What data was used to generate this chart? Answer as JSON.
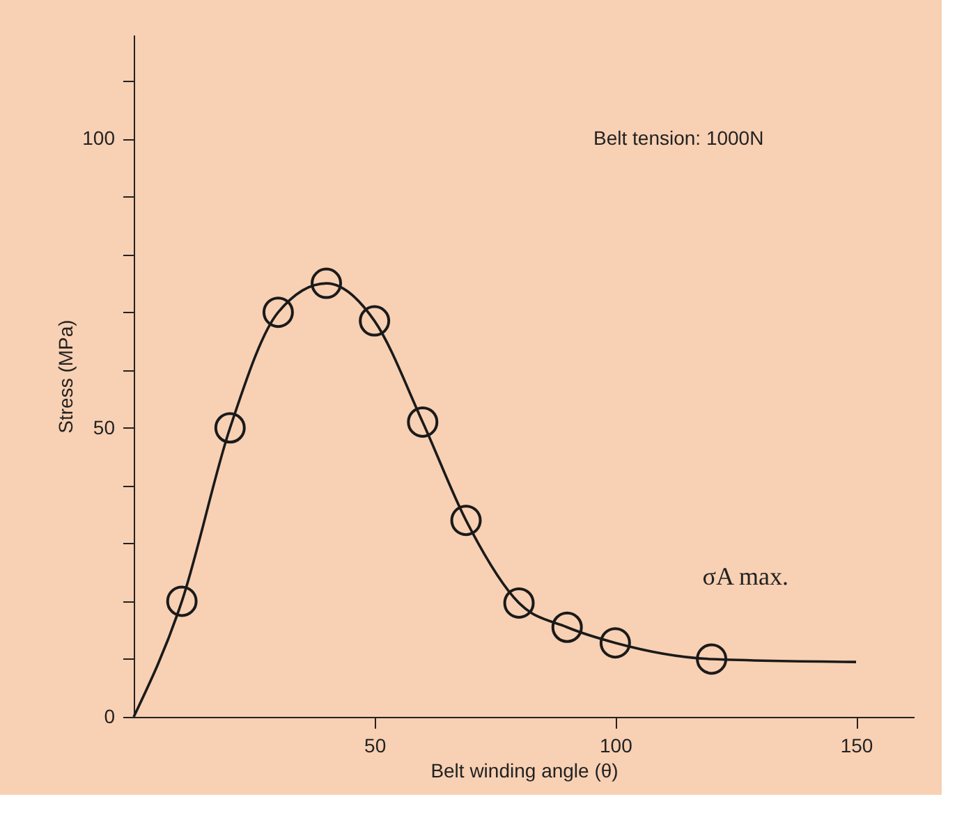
{
  "chart_data": {
    "type": "scatter",
    "xlabel": "Belt winding angle (θ)",
    "ylabel": "Stress (MPa)",
    "annotations": [
      "Belt tension: 1000N",
      {
        "text": "σA max.",
        "x": 110,
        "y": 11.5
      }
    ],
    "xlim": [
      0,
      162
    ],
    "ylim": [
      0,
      118
    ],
    "xticks": [
      50,
      100,
      150
    ],
    "yticks": [
      0,
      {
        "value": 10,
        "label": null
      },
      {
        "value": 20,
        "label": null
      },
      {
        "value": 30,
        "label": null
      },
      {
        "value": 40,
        "label": null
      },
      50,
      {
        "value": 60,
        "label": null
      },
      {
        "value": 70,
        "label": null
      },
      {
        "value": 80,
        "label": null
      },
      {
        "value": 90,
        "label": null
      },
      100,
      {
        "value": 110,
        "label": null
      }
    ],
    "grid": false,
    "marker": "circle",
    "series": [
      {
        "type": "line",
        "color": "#1a1a1a",
        "marker": "none",
        "line_style": "solid",
        "x": [
          0,
          10,
          20,
          30,
          40,
          50,
          60,
          69,
          80,
          90,
          100,
          120,
          150
        ],
        "values": [
          0,
          20,
          50,
          70,
          75,
          68.5,
          51,
          34,
          19.7,
          15.5,
          12.8,
          10,
          9.5
        ]
      },
      {
        "color": "#1a1a1a",
        "x": [
          10,
          20,
          30,
          40,
          50,
          60,
          69,
          80,
          90,
          100,
          120
        ],
        "values": [
          20,
          50,
          70,
          75,
          68.5,
          51,
          34,
          19.7,
          15.5,
          12.8,
          10
        ]
      }
    ]
  }
}
